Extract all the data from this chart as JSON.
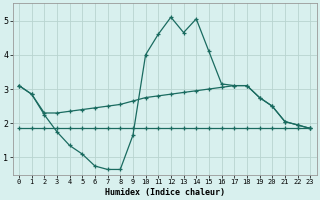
{
  "xlabel": "Humidex (Indice chaleur)",
  "x": [
    0,
    1,
    2,
    3,
    4,
    5,
    6,
    7,
    8,
    9,
    10,
    11,
    12,
    13,
    14,
    15,
    16,
    17,
    18,
    19,
    20,
    21,
    22,
    23
  ],
  "line1": [
    3.1,
    2.85,
    2.25,
    1.75,
    1.35,
    1.1,
    0.75,
    0.65,
    0.65,
    1.65,
    4.0,
    4.6,
    5.1,
    4.65,
    5.05,
    4.1,
    3.15,
    3.1,
    3.1,
    2.75,
    2.5,
    2.05,
    1.95,
    1.85
  ],
  "line2": [
    3.1,
    2.85,
    2.3,
    2.3,
    2.35,
    2.4,
    2.45,
    2.5,
    2.55,
    2.65,
    2.75,
    2.8,
    2.85,
    2.9,
    2.95,
    3.0,
    3.05,
    3.1,
    3.1,
    2.75,
    2.5,
    2.05,
    1.95,
    1.85
  ],
  "line3": [
    1.85,
    1.85,
    1.85,
    1.85,
    1.85,
    1.85,
    1.85,
    1.85,
    1.85,
    1.85,
    1.85,
    1.85,
    1.85,
    1.85,
    1.85,
    1.85,
    1.85,
    1.85,
    1.85,
    1.85,
    1.85,
    1.85,
    1.85,
    1.85
  ],
  "bg_color": "#d8f0ee",
  "grid_color": "#b8d4d0",
  "line_color": "#1a6b60",
  "ylim": [
    0.5,
    5.5
  ],
  "xlim": [
    -0.5,
    23.5
  ],
  "yticks": [
    1,
    2,
    3,
    4,
    5
  ],
  "xticks": [
    0,
    1,
    2,
    3,
    4,
    5,
    6,
    7,
    8,
    9,
    10,
    11,
    12,
    13,
    14,
    15,
    16,
    17,
    18,
    19,
    20,
    21,
    22,
    23
  ]
}
